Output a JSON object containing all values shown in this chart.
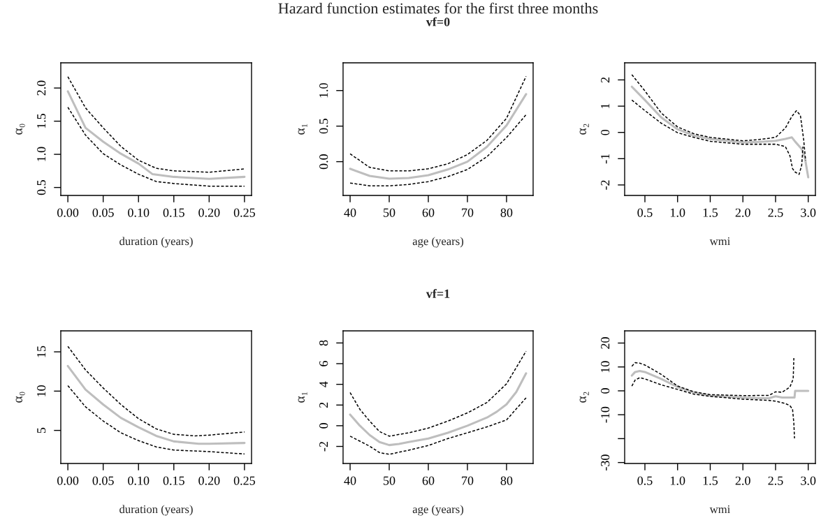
{
  "chart_data": [
    {
      "type": "line",
      "xlabel": "duration (years)",
      "ylabel": "α₀",
      "xlim": [
        -0.01,
        0.26
      ],
      "ylim": [
        0.38,
        2.38
      ],
      "xticks": [
        {
          "value": 0,
          "label": "0.00"
        },
        {
          "value": 0.05,
          "label": "0.05"
        },
        {
          "value": 0.1,
          "label": "0.10"
        },
        {
          "value": 0.15,
          "label": "0.15"
        },
        {
          "value": 0.2,
          "label": "0.20"
        },
        {
          "value": 0.25,
          "label": "0.25"
        }
      ],
      "yticks": [
        {
          "value": 0.5,
          "label": "0.5"
        },
        {
          "value": 1,
          "label": "1.0"
        },
        {
          "value": 1.5,
          "label": "1.5"
        },
        {
          "value": 2,
          "label": "2.0"
        }
      ],
      "series": [
        {
          "color": "#000000",
          "line_style": "dashed",
          "x": [
            0,
            0.025,
            0.05,
            0.075,
            0.1,
            0.125,
            0.15,
            0.2,
            0.25
          ],
          "values": [
            2.17,
            1.7,
            1.4,
            1.12,
            0.91,
            0.79,
            0.75,
            0.73,
            0.78
          ]
        },
        {
          "color": "#000000",
          "line_style": "dashed",
          "x": [
            0,
            0.025,
            0.05,
            0.075,
            0.1,
            0.125,
            0.15,
            0.2,
            0.25
          ],
          "values": [
            1.71,
            1.29,
            1.01,
            0.84,
            0.7,
            0.59,
            0.56,
            0.52,
            0.52
          ]
        },
        {
          "color": "#bebebe",
          "line_style": "solid",
          "x": [
            0,
            0.025,
            0.05,
            0.075,
            0.1,
            0.12,
            0.15,
            0.2,
            0.25
          ],
          "values": [
            1.95,
            1.4,
            1.19,
            1.01,
            0.86,
            0.7,
            0.66,
            0.63,
            0.66
          ]
        }
      ]
    },
    {
      "type": "line",
      "title": "Hazard function estimates for the first three months",
      "subtitle": "vf=0",
      "xlabel": "age (years)",
      "ylabel": "α₁",
      "xlim": [
        38.2,
        86.8
      ],
      "ylim": [
        -0.475,
        1.39
      ],
      "xticks": [
        40,
        50,
        60,
        70,
        80
      ],
      "yticks": [
        {
          "value": 0,
          "label": "0.0"
        },
        {
          "value": 0.5,
          "label": "0.5"
        },
        {
          "value": 1,
          "label": "1.0"
        }
      ],
      "series": [
        {
          "color": "#000000",
          "line_style": "dashed",
          "x": [
            40,
            45,
            50,
            55,
            60,
            65,
            70,
            75,
            80,
            85
          ],
          "values": [
            0.11,
            -0.08,
            -0.13,
            -0.13,
            -0.1,
            -0.03,
            0.1,
            0.3,
            0.61,
            1.2
          ]
        },
        {
          "color": "#000000",
          "line_style": "dashed",
          "x": [
            40,
            45,
            50,
            55,
            60,
            65,
            70,
            75,
            80,
            85
          ],
          "values": [
            -0.3,
            -0.34,
            -0.34,
            -0.32,
            -0.28,
            -0.21,
            -0.11,
            0.07,
            0.34,
            0.66
          ]
        },
        {
          "color": "#bebebe",
          "line_style": "solid",
          "x": [
            40,
            45,
            50,
            55,
            60,
            65,
            70,
            75,
            80,
            85
          ],
          "values": [
            -0.1,
            -0.2,
            -0.24,
            -0.23,
            -0.19,
            -0.11,
            0.0,
            0.21,
            0.51,
            0.95
          ]
        }
      ]
    },
    {
      "type": "line",
      "xlabel": "wmi",
      "ylabel": "α₂",
      "xlim": [
        0.19,
        3.11
      ],
      "ylim": [
        -2.4,
        2.65
      ],
      "xticks": [
        {
          "value": 0.5,
          "label": "0.5"
        },
        {
          "value": 1,
          "label": "1.0"
        },
        {
          "value": 1.5,
          "label": "1.5"
        },
        {
          "value": 2,
          "label": "2.0"
        },
        {
          "value": 2.5,
          "label": "2.5"
        },
        {
          "value": 3,
          "label": "3.0"
        }
      ],
      "yticks": [
        {
          "value": -2,
          "label": "-2"
        },
        {
          "value": -1,
          "label": "-1"
        },
        0,
        1,
        2
      ],
      "series": [
        {
          "color": "#000000",
          "line_style": "dashed",
          "x": [
            0.3,
            0.5,
            0.75,
            1.0,
            1.25,
            1.5,
            2.0,
            2.25,
            2.5,
            2.65,
            2.75,
            2.82,
            2.88,
            2.93,
            2.96
          ],
          "values": [
            2.2,
            1.58,
            0.74,
            0.21,
            -0.05,
            -0.19,
            -0.32,
            -0.27,
            -0.19,
            0.17,
            0.61,
            0.83,
            0.65,
            -0.27,
            -1.07
          ]
        },
        {
          "color": "#000000",
          "line_style": "dashed",
          "x": [
            0.3,
            0.5,
            0.75,
            1.0,
            1.25,
            1.5,
            2.0,
            2.5,
            2.65,
            2.72,
            2.76,
            2.8,
            2.86,
            2.9,
            2.92
          ],
          "values": [
            1.23,
            0.83,
            0.35,
            -0.01,
            -0.19,
            -0.34,
            -0.45,
            -0.45,
            -0.54,
            -0.89,
            -1.38,
            -1.51,
            -1.6,
            -1.25,
            -0.54
          ]
        },
        {
          "color": "#bebebe",
          "line_style": "solid",
          "x": [
            0.3,
            0.5,
            0.75,
            1.0,
            1.25,
            1.5,
            2.0,
            2.25,
            2.5,
            2.65,
            2.75,
            2.8,
            2.9,
            2.95,
            3.0
          ],
          "values": [
            1.74,
            1.23,
            0.57,
            0.12,
            -0.12,
            -0.25,
            -0.38,
            -0.36,
            -0.32,
            -0.25,
            -0.19,
            -0.35,
            -0.63,
            -0.98,
            -1.71
          ]
        }
      ]
    },
    {
      "type": "line",
      "xlabel": "duration (years)",
      "ylabel": "α₀",
      "xlim": [
        -0.01,
        0.26
      ],
      "ylim": [
        0.79,
        17.67
      ],
      "xticks": [
        {
          "value": 0,
          "label": "0.00"
        },
        {
          "value": 0.05,
          "label": "0.05"
        },
        {
          "value": 0.1,
          "label": "0.10"
        },
        {
          "value": 0.15,
          "label": "0.15"
        },
        {
          "value": 0.2,
          "label": "0.20"
        },
        {
          "value": 0.25,
          "label": "0.25"
        }
      ],
      "yticks": [
        5,
        10,
        15
      ],
      "series": [
        {
          "color": "#000000",
          "line_style": "dashed",
          "x": [
            0,
            0.025,
            0.05,
            0.075,
            0.1,
            0.125,
            0.15,
            0.18,
            0.2,
            0.25
          ],
          "values": [
            15.7,
            12.7,
            10.4,
            8.3,
            6.5,
            5.2,
            4.5,
            4.3,
            4.4,
            4.8
          ]
        },
        {
          "color": "#000000",
          "line_style": "dashed",
          "x": [
            0,
            0.025,
            0.05,
            0.075,
            0.1,
            0.125,
            0.15,
            0.2,
            0.25
          ],
          "values": [
            10.7,
            8.0,
            6.2,
            4.7,
            3.7,
            2.9,
            2.5,
            2.3,
            2.0
          ]
        },
        {
          "color": "#bebebe",
          "line_style": "solid",
          "x": [
            0,
            0.025,
            0.05,
            0.075,
            0.1,
            0.125,
            0.15,
            0.185,
            0.2,
            0.25
          ],
          "values": [
            13.2,
            10.2,
            8.3,
            6.6,
            5.4,
            4.3,
            3.6,
            3.3,
            3.3,
            3.4
          ]
        }
      ]
    },
    {
      "type": "line",
      "title": "vf=1",
      "xlabel": "age (years)",
      "ylabel": "α₁",
      "xlim": [
        38.2,
        86.8
      ],
      "ylim": [
        -3.65,
        9.17
      ],
      "xticks": [
        40,
        50,
        60,
        70,
        80
      ],
      "yticks": [
        {
          "value": -2,
          "label": "-2"
        },
        0,
        2,
        4,
        6,
        8
      ],
      "series": [
        {
          "color": "#000000",
          "line_style": "dashed",
          "x": [
            40,
            42.5,
            45,
            47.5,
            50,
            55,
            60,
            65,
            70,
            75,
            80,
            85
          ],
          "values": [
            3.2,
            1.58,
            0.45,
            -0.56,
            -1.01,
            -0.68,
            -0.23,
            0.45,
            1.24,
            2.25,
            4.05,
            7.21
          ]
        },
        {
          "color": "#000000",
          "line_style": "dashed",
          "x": [
            40,
            45,
            47.5,
            50,
            55,
            60,
            65,
            70,
            75,
            80,
            85
          ],
          "values": [
            -1.01,
            -1.98,
            -2.59,
            -2.77,
            -2.36,
            -1.91,
            -1.24,
            -0.68,
            -0.11,
            0.56,
            2.7
          ]
        },
        {
          "color": "#bebebe",
          "line_style": "solid",
          "x": [
            40,
            42.5,
            45,
            47.5,
            50,
            52.5,
            55,
            60,
            65,
            70,
            75,
            77.5,
            80,
            82.5,
            85
          ],
          "values": [
            1.08,
            0,
            -0.9,
            -1.58,
            -1.87,
            -1.76,
            -1.58,
            -1.24,
            -0.68,
            0,
            0.79,
            1.35,
            2.07,
            3.27,
            5.07
          ]
        }
      ]
    },
    {
      "type": "line",
      "xlabel": "wmi",
      "ylabel": "α₂",
      "xlim": [
        0.19,
        3.11
      ],
      "ylim": [
        -30.4,
        25.1
      ],
      "xticks": [
        {
          "value": 0.5,
          "label": "0.5"
        },
        {
          "value": 1,
          "label": "1.0"
        },
        {
          "value": 1.5,
          "label": "1.5"
        },
        {
          "value": 2,
          "label": "2.0"
        },
        {
          "value": 2.5,
          "label": "2.5"
        },
        {
          "value": 3,
          "label": "3.0"
        }
      ],
      "yticks": [
        {
          "value": -30,
          "label": "-30"
        },
        {
          "value": -20,
          "label": null
        },
        {
          "value": -10,
          "label": "-10"
        },
        0,
        10,
        20
      ],
      "series": [
        {
          "color": "#000000",
          "line_style": "dashed",
          "x": [
            0.3,
            0.35,
            0.42,
            0.5,
            0.75,
            1.0,
            1.25,
            1.5,
            2.0,
            2.4,
            2.5,
            2.6,
            2.72,
            2.77,
            2.78
          ],
          "values": [
            10.3,
            11.8,
            11.6,
            10.8,
            6.9,
            2.0,
            -0.4,
            -1.6,
            -2.0,
            -1.9,
            -0.4,
            -0.6,
            1.6,
            5.0,
            13.7
          ]
        },
        {
          "color": "#000000",
          "line_style": "dashed",
          "x": [
            0.3,
            0.35,
            0.42,
            0.5,
            0.75,
            1.0,
            1.25,
            1.5,
            2.0,
            2.4,
            2.5,
            2.65,
            2.72,
            2.76,
            2.78,
            2.79
          ],
          "values": [
            2.0,
            4.5,
            5.5,
            5.0,
            2.5,
            0.6,
            -1.4,
            -2.3,
            -3.5,
            -4.0,
            -4.3,
            -5.3,
            -6.2,
            -7.7,
            -13.5,
            -19.9
          ]
        },
        {
          "color": "#bebebe",
          "line_style": "solid",
          "x": [
            0.3,
            0.35,
            0.42,
            0.5,
            0.75,
            1.0,
            1.25,
            1.5,
            2.0,
            2.25,
            2.4,
            2.5,
            2.6,
            2.79,
            2.8,
            3.0
          ],
          "values": [
            6.4,
            7.9,
            8.3,
            7.9,
            5.0,
            1.6,
            -0.7,
            -2.0,
            -2.8,
            -3.1,
            -3.1,
            -2.3,
            -2.8,
            -2.8,
            0,
            0
          ]
        }
      ]
    }
  ]
}
